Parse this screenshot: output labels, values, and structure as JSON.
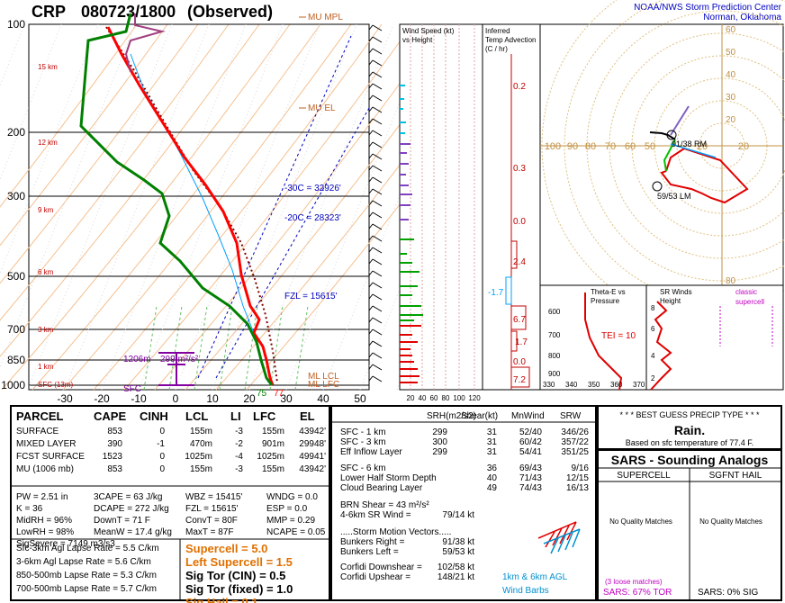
{
  "header": {
    "station": "CRP",
    "datetime": "080723/1800",
    "type": "(Observed)",
    "org1": "NOAA/NWS Storm Prediction Center",
    "org2": "Norman, Oklahoma"
  },
  "skewt": {
    "pressure_labels": [
      "100",
      "200",
      "300",
      "500",
      "700",
      "850",
      "1000"
    ],
    "height_labels": [
      "15 km",
      "12 km",
      "9 km",
      "6 km",
      "3 km",
      "1 km",
      "SFC (13m)"
    ],
    "temp_ticks": [
      "-30",
      "-20",
      "-10",
      "0",
      "10",
      "20",
      "30",
      "40",
      "50"
    ],
    "levels": [
      "MU MPL",
      "MU EL",
      "ML LCL",
      "ML LFC"
    ],
    "isotherm_labels": [
      "-30C = 32926'",
      "-20C = 28323'"
    ],
    "fzl": "FZL = 15615'",
    "srh_label": "299 m²/s²",
    "srh_height": "1206m",
    "sfc_label": "SFC",
    "sfc_t": "77",
    "sfc_td": "75",
    "colors": {
      "temp": "#ff0000",
      "dewp": "#008000",
      "virt": "#800000",
      "wetbulb": "#00bfff"
    }
  },
  "wind_col": {
    "title1": "Wind Speed (kt)",
    "title2": "vs Height",
    "ticks": [
      "20",
      "40",
      "60",
      "80",
      "100",
      "120"
    ]
  },
  "adv_col": {
    "title1": "Inferred",
    "title2": "Temp Advection",
    "title3": "(C / hr)",
    "values": [
      "0.2",
      "0.3",
      "0.0",
      "2.4",
      "-1.7",
      "6.7",
      "1.7",
      "0.0",
      "7.2"
    ]
  },
  "hodo": {
    "ring_labels": [
      "60",
      "50",
      "40",
      "30",
      "20",
      "10",
      "80"
    ],
    "axis_labels": [
      "100",
      "90",
      "80",
      "70",
      "60",
      "50",
      "40",
      "30",
      "20",
      "10",
      "10",
      "20"
    ],
    "rm": "91/38 RM",
    "lm": "59/53 LM"
  },
  "theta": {
    "title1": "Theta-E vs",
    "title2": "Pressure",
    "tei": "TEI = 10",
    "pticks": [
      "600",
      "700",
      "800",
      "900"
    ],
    "xticks": [
      "330",
      "340",
      "350",
      "360",
      "370"
    ]
  },
  "srw": {
    "title1": "SR Winds",
    "title2": "Height",
    "classic": "classic",
    "supercell": "supercell",
    "yticks": [
      "8",
      "6",
      "4",
      "2"
    ]
  },
  "parcel": {
    "headers": [
      "PARCEL",
      "CAPE",
      "CINH",
      "LCL",
      "LI",
      "LFC",
      "EL"
    ],
    "rows": [
      [
        "SURFACE",
        "853",
        "0",
        "155m",
        "-3",
        "155m",
        "43942'"
      ],
      [
        "MIXED LAYER",
        "390",
        "-1",
        "470m",
        "-2",
        "901m",
        "29948'"
      ],
      [
        "FCST SURFACE",
        "1523",
        "0",
        "1025m",
        "-4",
        "1025m",
        "49941'"
      ],
      [
        "MU   (1006 mb)",
        "853",
        "0",
        "155m",
        "-3",
        "155m",
        "43942'"
      ]
    ]
  },
  "indices": {
    "col1": [
      "PW = 2.51 in",
      "K = 36",
      "MidRH = 96%",
      "LowRH = 98%",
      "SigSevere = 7149 m3/s3"
    ],
    "col2": [
      "3CAPE = 63 J/kg",
      "DCAPE = 272 J/kg",
      "DownT = 71 F",
      "MeanW = 17.4 g/kg"
    ],
    "col3": [
      "WBZ = 15415'",
      "FZL = 15615'",
      "ConvT = 80F",
      "MaxT = 87F"
    ],
    "col4": [
      "WNDG = 0.0",
      "ESP = 0.0",
      "MMP = 0.29",
      "NCAPE = 0.05"
    ]
  },
  "lapse": [
    "Sfc-3km Agl Lapse Rate = 5.5 C/km",
    "3-6km Agl Lapse Rate = 5.6 C/km",
    "850-500mb Lapse Rate = 5.3 C/km",
    "700-500mb Lapse Rate = 5.7 C/km"
  ],
  "params": [
    {
      "text": "Supercell = 5.0",
      "color": "#e07000"
    },
    {
      "text": "Left Supercell = 1.5",
      "color": "#e07000"
    },
    {
      "text": "Sig Tor (CIN) = 0.5",
      "color": "#000"
    },
    {
      "text": "Sig Tor (fixed) = 1.0",
      "color": "#000"
    },
    {
      "text": "Sig Hail = 0.1",
      "color": "#e07000"
    }
  ],
  "kin": {
    "headers": [
      "SRH(m2/s2)",
      "Shear(kt)",
      "MnWind",
      "SRW"
    ],
    "rows": [
      [
        "SFC - 1 km",
        "299",
        "31",
        "52/40",
        "346/26"
      ],
      [
        "SFC - 3 km",
        "300",
        "31",
        "60/42",
        "357/22"
      ],
      [
        "Eff Inflow Layer",
        "299",
        "31",
        "54/41",
        "351/25"
      ],
      [
        "SFC - 6 km",
        "",
        "36",
        "69/43",
        "9/16"
      ],
      [
        "Lower Half Storm Depth",
        "",
        "40",
        "71/43",
        "12/15"
      ],
      [
        "Cloud Bearing Layer",
        "",
        "49",
        "74/43",
        "16/13"
      ]
    ],
    "brn1": "BRN Shear = 43 m²/s²",
    "brn2a": "4-6km SR Wind =",
    "brn2b": "79/14 kt",
    "motion_title": ".....Storm Motion Vectors.....",
    "motions": [
      [
        "Bunkers Right =",
        "91/38 kt"
      ],
      [
        "Bunkers Left =",
        "59/53 kt"
      ]
    ],
    "corfidi": [
      [
        "Corfidi Downshear =",
        "102/58 kt"
      ],
      [
        "Corfidi Upshear =",
        "148/21 kt"
      ]
    ],
    "barb_label1": "1km & 6km AGL",
    "barb_label2": "Wind Barbs"
  },
  "precip": {
    "title": "* * * BEST GUESS PRECIP TYPE * * *",
    "value": "Rain.",
    "note": "Based on sfc temperature of 77.4 F."
  },
  "sars": {
    "title": "SARS - Sounding Analogs",
    "col1": "SUPERCELL",
    "col2": "SGFNT HAIL",
    "nq1": "No Quality Matches",
    "nq2": "No Quality Matches",
    "loose": "(3 loose matches)",
    "tor": "SARS: 67% TOR",
    "sig": "SARS: 0% SIG"
  },
  "chart_data": [
    {
      "type": "line",
      "name": "skew-t",
      "y_pressure_levels_mb": [
        1000,
        850,
        700,
        500,
        300,
        200,
        100
      ],
      "x_temp_ticks_c": [
        -30,
        -20,
        -10,
        0,
        10,
        20,
        30,
        40,
        50
      ],
      "series": [
        {
          "name": "temperature",
          "p": [
            1006,
            925,
            850,
            700,
            600,
            500,
            400,
            300,
            250,
            200,
            150,
            100
          ],
          "t": [
            25,
            21,
            18,
            10,
            4,
            -4,
            -12,
            -28,
            -38,
            -50,
            -58,
            -65
          ]
        },
        {
          "name": "dewpoint",
          "p": [
            1006,
            925,
            850,
            700,
            600,
            500,
            400,
            300,
            250,
            200,
            150,
            100
          ],
          "t": [
            24,
            19,
            16,
            8,
            0,
            -12,
            -28,
            -40,
            -50,
            -58,
            -68,
            -72
          ]
        }
      ]
    }
  ]
}
